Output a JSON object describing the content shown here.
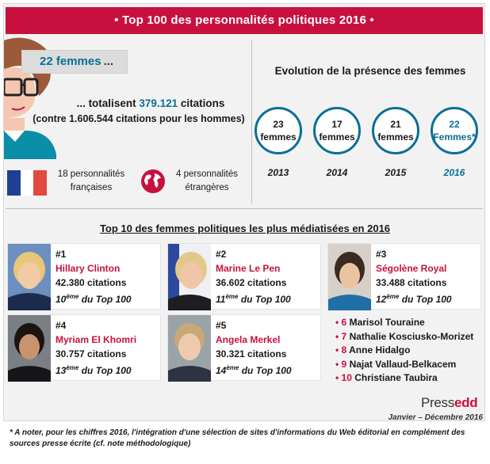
{
  "banner": {
    "title": "• Top 100 des personnalités politiques 2016 •"
  },
  "women": {
    "count_label": "22 femmes",
    "dots": "...",
    "total_prefix": "... totalisent",
    "total_value": "379.121",
    "total_suffix": "citations",
    "comparison": "(contre 1.606.544 citations pour les hommes)"
  },
  "nationality": {
    "french": "18 personnalités françaises",
    "foreign": "4 personnalités étrangères"
  },
  "evolution": {
    "title": "Evolution de la présence des femmes",
    "items": [
      {
        "count": "23",
        "unit": "femmes",
        "year": "2013"
      },
      {
        "count": "17",
        "unit": "femmes",
        "year": "2014"
      },
      {
        "count": "21",
        "unit": "femmes",
        "year": "2015"
      },
      {
        "count": "22",
        "unit": "Femmes*",
        "year": "2016"
      }
    ]
  },
  "top10": {
    "title": "Top 10 des femmes politiques les plus médiatisées en 2016",
    "cards": [
      {
        "rank": "#1",
        "name": "Hillary Clinton",
        "citations": "42.380 citations",
        "pos": "10",
        "sup": "ème",
        "rest": " du Top 100"
      },
      {
        "rank": "#2",
        "name": "Marine Le Pen",
        "citations": "36.602 citations",
        "pos": "11",
        "sup": "ème",
        "rest": " du Top 100"
      },
      {
        "rank": "#3",
        "name": "Ségolène Royal",
        "citations": "33.488 citations",
        "pos": "12",
        "sup": "ème",
        "rest": " du Top 100"
      },
      {
        "rank": "#4",
        "name": "Myriam El Khomri",
        "citations": "30.757 citations",
        "pos": "13",
        "sup": "ème",
        "rest": " du Top 100"
      },
      {
        "rank": "#5",
        "name": "Angela Merkel",
        "citations": "30.321 citations",
        "pos": "14",
        "sup": "ème",
        "rest": " du Top 100"
      }
    ],
    "others": [
      {
        "num": "6",
        "name": "Marisol Touraine"
      },
      {
        "num": "7",
        "name": "Nathalie Kosciusko-Morizet"
      },
      {
        "num": "8",
        "name": "Anne Hidalgo"
      },
      {
        "num": "9",
        "name": "Najat Vallaud-Belkacem"
      },
      {
        "num": "10",
        "name": "Christiane Taubira"
      }
    ]
  },
  "brand": {
    "logo_a": "Press",
    "logo_b": "edd",
    "period": "Janvier – Décembre 2016"
  },
  "footnote": "* A noter, pour les chiffres 2016, l'intégration d'une sélection de sites d'informations du Web éditorial en complément des sources presse écrite (cf. note méthodologique)",
  "colors": {
    "accent": "#c8103e",
    "blue": "#0b6f95"
  }
}
